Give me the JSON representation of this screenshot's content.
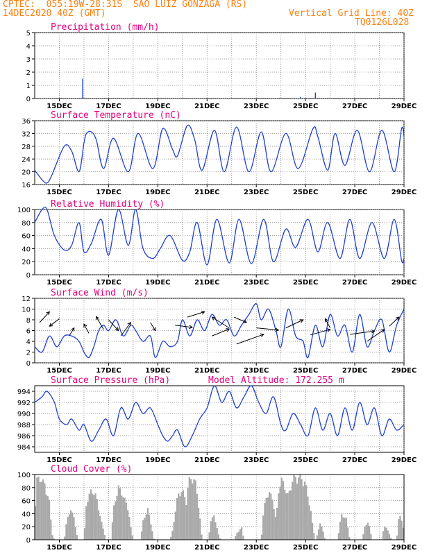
{
  "header": {
    "line1_left": "CPTEC:  055:19W-28:31S  SAO LUIZ GONZAGA (RS)",
    "line2_left": "14DEC2020 40Z (GMT)",
    "line2_right": "Vertical Grid Line: 40Z",
    "line3_right": "TQ0126L028"
  },
  "colors": {
    "header": "#ff7f0e",
    "title": "#e6007e",
    "series": "#1f3fd6",
    "cloud": "#a9a9a9",
    "grid": "#808080"
  },
  "x_labels": [
    "15DEC",
    "17DEC",
    "19DEC",
    "21DEC",
    "23DEC",
    "25DEC",
    "27DEC",
    "29DEC"
  ],
  "chart_data": [
    {
      "id": "precip",
      "type": "bar",
      "title": "Precipitation (mm/h)",
      "ylim": [
        0,
        5
      ],
      "yticks": [
        0,
        1,
        2,
        3,
        4,
        5
      ],
      "x": [
        15.95,
        23.95,
        24.8,
        25.4
      ],
      "values": [
        1.5,
        0.05,
        0.12,
        0.45
      ]
    },
    {
      "id": "temp",
      "type": "line",
      "title": "Surface Temperature (nC)",
      "ylim": [
        16,
        36
      ],
      "yticks": [
        16,
        20,
        24,
        28,
        32,
        36
      ],
      "x": [
        14.0,
        14.3,
        14.5,
        14.7,
        15.2,
        15.5,
        15.8,
        16.0,
        16.1,
        16.3,
        16.5,
        16.8,
        17.2,
        17.8,
        18.2,
        18.8,
        19.2,
        19.6,
        19.8,
        20.2,
        20.5,
        20.8,
        21.3,
        21.7,
        22.2,
        22.7,
        23.2,
        23.6,
        24.2,
        24.7,
        25.3,
        25.5,
        25.9,
        26.2,
        26.6,
        27.1,
        27.6,
        28.1,
        28.6,
        28.9,
        29.0
      ],
      "values": [
        20.5,
        17.5,
        16.5,
        19,
        28,
        26.5,
        20,
        29,
        32,
        32.5,
        30,
        21,
        30.5,
        20,
        32,
        21,
        33.5,
        27,
        25,
        34.5,
        30,
        20.5,
        33,
        20,
        34,
        20,
        32.5,
        20,
        32,
        21,
        33.5,
        31,
        20.5,
        32,
        22,
        33,
        20,
        33,
        20,
        33.5,
        31
      ]
    },
    {
      "id": "rh",
      "type": "line",
      "title": "Relative Humidity (%)",
      "ylim": [
        0,
        100
      ],
      "yticks": [
        0,
        20,
        40,
        60,
        80,
        100
      ],
      "x": [
        14.0,
        14.3,
        14.5,
        14.8,
        15.2,
        15.5,
        15.8,
        16.0,
        16.3,
        16.7,
        17.0,
        17.4,
        17.8,
        18.1,
        18.4,
        18.8,
        19.1,
        19.5,
        20.0,
        20.3,
        20.6,
        21.0,
        21.4,
        21.9,
        22.3,
        22.8,
        23.3,
        23.7,
        24.2,
        24.6,
        25.1,
        25.5,
        25.9,
        26.4,
        26.8,
        27.2,
        27.7,
        28.2,
        28.6,
        28.9,
        29.0
      ],
      "values": [
        80,
        100,
        100,
        60,
        38,
        45,
        80,
        35,
        48,
        85,
        30,
        100,
        45,
        100,
        40,
        25,
        40,
        60,
        22,
        35,
        80,
        15,
        85,
        18,
        85,
        17,
        85,
        20,
        70,
        42,
        85,
        35,
        80,
        25,
        85,
        25,
        80,
        25,
        85,
        22,
        25
      ]
    },
    {
      "id": "wind",
      "type": "line",
      "title": "Surface Wind (m/s)",
      "ylim": [
        0,
        12
      ],
      "yticks": [
        0,
        2,
        4,
        6,
        8,
        10,
        12
      ],
      "x": [
        14.0,
        14.3,
        14.6,
        14.9,
        15.2,
        15.5,
        15.8,
        16.0,
        16.2,
        16.4,
        16.6,
        16.8,
        17.0,
        17.3,
        17.6,
        17.9,
        18.1,
        18.4,
        18.7,
        18.9,
        19.2,
        19.5,
        19.8,
        20.0,
        20.3,
        20.6,
        20.9,
        21.2,
        21.5,
        21.8,
        22.1,
        22.4,
        22.7,
        23.0,
        23.2,
        23.5,
        23.8,
        24.0,
        24.3,
        24.6,
        24.9,
        25.1,
        25.4,
        25.7,
        26.0,
        26.3,
        26.6,
        26.9,
        27.2,
        27.5,
        27.8,
        28.1,
        28.4,
        28.7,
        29.0
      ],
      "values": [
        3,
        2,
        5,
        3,
        5,
        5,
        4,
        2,
        1,
        3,
        6,
        7,
        6,
        8,
        5,
        7,
        6,
        4,
        5,
        1,
        4,
        3,
        4,
        8,
        5,
        8,
        6,
        9,
        7,
        8,
        5,
        7,
        9,
        11,
        8,
        10,
        6,
        3,
        10,
        5,
        4,
        1,
        7,
        3,
        9,
        5,
        7,
        2,
        9,
        3,
        6,
        8,
        2,
        7,
        10
      ]
    },
    {
      "id": "pressure",
      "type": "line",
      "title": "Surface Pressure (hPa)",
      "subtitle": "Model Altitude: 172.255 m",
      "ylim": [
        983,
        995
      ],
      "yticks": [
        984,
        986,
        988,
        990,
        992,
        994
      ],
      "x": [
        14.0,
        14.3,
        14.5,
        14.8,
        15.0,
        15.3,
        15.5,
        15.8,
        16.0,
        16.3,
        16.6,
        16.9,
        17.2,
        17.5,
        17.8,
        18.1,
        18.4,
        18.7,
        19.0,
        19.2,
        19.4,
        19.6,
        19.8,
        20.1,
        20.4,
        20.7,
        21.0,
        21.3,
        21.6,
        21.9,
        22.2,
        22.5,
        22.8,
        23.1,
        23.4,
        23.7,
        24.0,
        24.2,
        24.5,
        24.8,
        25.1,
        25.4,
        25.7,
        26.0,
        26.3,
        26.6,
        26.9,
        27.2,
        27.5,
        27.8,
        28.1,
        28.4,
        28.7,
        29.0
      ],
      "values": [
        992,
        993,
        994,
        992,
        989,
        988,
        989,
        987,
        988,
        985,
        987,
        989,
        986,
        991,
        989,
        992,
        990,
        991,
        988,
        986,
        985,
        986,
        987,
        984,
        986,
        989,
        991,
        995,
        992,
        994,
        991,
        993,
        995,
        992,
        990,
        993,
        988,
        987,
        990,
        988,
        986,
        991,
        987,
        990,
        986,
        991,
        987,
        992,
        988,
        991,
        986,
        989,
        987,
        988
      ]
    },
    {
      "id": "cloud",
      "type": "bar",
      "title": "Cloud Cover (%)",
      "ylim": [
        0,
        100
      ],
      "yticks": [
        0,
        20,
        40,
        60,
        80,
        100
      ]
    }
  ]
}
